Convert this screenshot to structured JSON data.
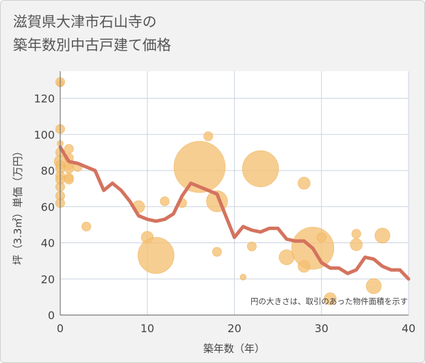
{
  "chart_data": {
    "type": "scatter",
    "title_lines": [
      "滋賀県大津市石山寺の",
      "築年数別中古戸建て価格"
    ],
    "xlabel": "築年数（年）",
    "ylabel": "坪（3.3㎡）単価（万円）",
    "xlim": [
      0,
      40
    ],
    "ylim": [
      0,
      135
    ],
    "x_ticks": [
      0,
      10,
      20,
      30,
      40
    ],
    "y_ticks": [
      0,
      20,
      40,
      60,
      80,
      100,
      120
    ],
    "grid": true,
    "note": "円の大きさは、取引のあった物件面積を示す",
    "colors": {
      "bubble": "#f5c072",
      "bubble_stroke": "#eeb056",
      "line": "#d4735e",
      "grid": "#c9d3df",
      "plot_bg": "#ffffff",
      "text": "#444444"
    },
    "bubbles": [
      {
        "x": 0,
        "y": 129,
        "s": 3
      },
      {
        "x": 0,
        "y": 128,
        "s": 2
      },
      {
        "x": 0,
        "y": 103,
        "s": 3
      },
      {
        "x": 0,
        "y": 95,
        "s": 2
      },
      {
        "x": 0,
        "y": 90,
        "s": 3
      },
      {
        "x": 0,
        "y": 85,
        "s": 4
      },
      {
        "x": 0,
        "y": 83,
        "s": 3
      },
      {
        "x": 0,
        "y": 81,
        "s": 3
      },
      {
        "x": 0,
        "y": 77,
        "s": 3
      },
      {
        "x": 0,
        "y": 75,
        "s": 3
      },
      {
        "x": 0,
        "y": 71,
        "s": 3
      },
      {
        "x": 0,
        "y": 66,
        "s": 3
      },
      {
        "x": 0,
        "y": 62,
        "s": 3
      },
      {
        "x": 1,
        "y": 92,
        "s": 3
      },
      {
        "x": 1,
        "y": 87,
        "s": 3
      },
      {
        "x": 1,
        "y": 83,
        "s": 3
      },
      {
        "x": 1,
        "y": 81,
        "s": 3
      },
      {
        "x": 1,
        "y": 76,
        "s": 3
      },
      {
        "x": 1,
        "y": 75,
        "s": 3
      },
      {
        "x": 2,
        "y": 82,
        "s": 3
      },
      {
        "x": 3,
        "y": 49,
        "s": 3
      },
      {
        "x": 9,
        "y": 60,
        "s": 4
      },
      {
        "x": 10,
        "y": 43,
        "s": 4
      },
      {
        "x": 11,
        "y": 33,
        "s": 12
      },
      {
        "x": 12,
        "y": 63,
        "s": 3
      },
      {
        "x": 14,
        "y": 62,
        "s": 3
      },
      {
        "x": 16,
        "y": 82,
        "s": 17
      },
      {
        "x": 17,
        "y": 99,
        "s": 3
      },
      {
        "x": 18,
        "y": 63,
        "s": 7
      },
      {
        "x": 18,
        "y": 35,
        "s": 3
      },
      {
        "x": 21,
        "y": 21,
        "s": 2
      },
      {
        "x": 22,
        "y": 38,
        "s": 3
      },
      {
        "x": 23,
        "y": 81,
        "s": 12
      },
      {
        "x": 26,
        "y": 32,
        "s": 5
      },
      {
        "x": 28,
        "y": 73,
        "s": 4
      },
      {
        "x": 28,
        "y": 27,
        "s": 4
      },
      {
        "x": 29,
        "y": 37,
        "s": 14
      },
      {
        "x": 30,
        "y": 43,
        "s": 3
      },
      {
        "x": 31,
        "y": 9,
        "s": 4
      },
      {
        "x": 34,
        "y": 45,
        "s": 3
      },
      {
        "x": 34,
        "y": 39,
        "s": 4
      },
      {
        "x": 36,
        "y": 16,
        "s": 5
      },
      {
        "x": 37,
        "y": 44,
        "s": 5
      }
    ],
    "trend": {
      "x": [
        0,
        1,
        2,
        3,
        4,
        5,
        6,
        7,
        8,
        9,
        10,
        11,
        12,
        13,
        14,
        15,
        16,
        17,
        18,
        19,
        20,
        21,
        22,
        23,
        24,
        25,
        26,
        27,
        28,
        29,
        30,
        31,
        32,
        33,
        34,
        35,
        36,
        37,
        38,
        39,
        40
      ],
      "y": [
        93,
        85,
        84,
        82,
        80,
        69,
        73,
        69,
        63,
        55,
        53,
        52,
        53,
        56,
        66,
        73,
        71,
        69,
        67,
        55,
        43,
        49,
        47,
        46,
        48,
        48,
        42,
        41,
        41,
        37,
        29,
        26,
        26,
        23,
        25,
        32,
        31,
        27,
        25,
        25,
        20
      ]
    }
  }
}
